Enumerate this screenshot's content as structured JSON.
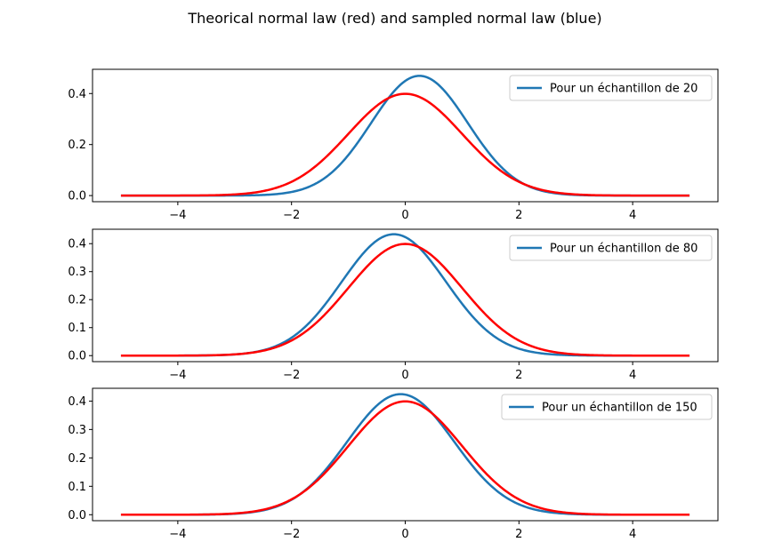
{
  "figure": {
    "title": "Theorical normal law (red) and sampled normal law (blue)"
  },
  "colors": {
    "sampled": "#1f77b4",
    "theoretical": "#ff0000"
  },
  "chart_data": [
    {
      "type": "line",
      "xlim": [
        -5.5,
        5.5
      ],
      "ylim": [
        -0.024,
        0.495
      ],
      "xticks": [
        "−4",
        "−2",
        "0",
        "2",
        "4"
      ],
      "yticks": [
        "0.0",
        "0.2",
        "0.4"
      ],
      "legend": {
        "entries": [
          "Pour un échantillon de 20"
        ],
        "placement": "upper right"
      },
      "series": [
        {
          "name": "Pour un échantillon de 20",
          "color": "#1f77b4",
          "mu": 0.25,
          "sigma": 0.85,
          "x_range": [
            -5,
            5
          ]
        },
        {
          "color": "#ff0000",
          "mu": 0.0,
          "sigma": 1.0,
          "x_range": [
            -5,
            5
          ]
        }
      ],
      "grid": false
    },
    {
      "type": "line",
      "xlim": [
        -5.5,
        5.5
      ],
      "ylim": [
        -0.0215,
        0.4515
      ],
      "xticks": [
        "−4",
        "−2",
        "0",
        "2",
        "4"
      ],
      "yticks": [
        "0.0",
        "0.1",
        "0.2",
        "0.3",
        "0.4"
      ],
      "legend": {
        "entries": [
          "Pour un échantillon de 80"
        ],
        "placement": "upper right"
      },
      "series": [
        {
          "name": "Pour un échantillon de 80",
          "color": "#1f77b4",
          "mu": -0.2,
          "sigma": 0.92,
          "x_range": [
            -5,
            5
          ]
        },
        {
          "color": "#ff0000",
          "mu": 0.0,
          "sigma": 1.0,
          "x_range": [
            -5,
            5
          ]
        }
      ],
      "grid": false
    },
    {
      "type": "line",
      "xlim": [
        -5.5,
        5.5
      ],
      "ylim": [
        -0.021,
        0.445
      ],
      "xticks": [
        "−4",
        "−2",
        "0",
        "2",
        "4"
      ],
      "yticks": [
        "0.0",
        "0.1",
        "0.2",
        "0.3",
        "0.4"
      ],
      "legend": {
        "entries": [
          "Pour un échantillon de 150"
        ],
        "placement": "upper right"
      },
      "series": [
        {
          "name": "Pour un échantillon de 150",
          "color": "#1f77b4",
          "mu": -0.08,
          "sigma": 0.94,
          "x_range": [
            -5,
            5
          ]
        },
        {
          "color": "#ff0000",
          "mu": 0.0,
          "sigma": 1.0,
          "x_range": [
            -5,
            5
          ]
        }
      ],
      "grid": false
    }
  ]
}
